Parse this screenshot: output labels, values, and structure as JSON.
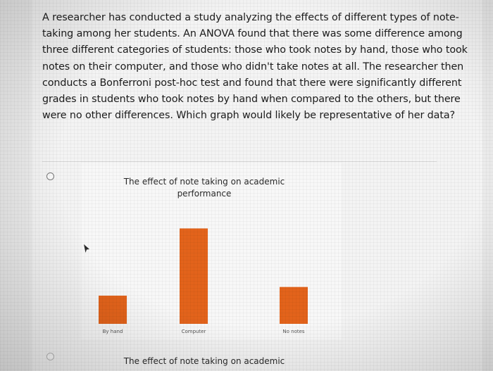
{
  "question": {
    "text": "A researcher has conducted a study analyzing the effects of different types of note-taking among her students. An ANOVA found that there was some difference among three different categories of students: those who took notes by hand, those who took notes on their computer, and those who didn't take notes at all. The researcher then conducts a Bonferroni post-hoc test and found that there were significantly different grades in students who took notes by hand when compared to the others, but there were no other differences. Which graph would likely be representative of her data?"
  },
  "options": [
    {
      "chart_title": "The effect of note taking on academic performance"
    },
    {
      "chart_title": "The effect of note taking on academic"
    }
  ],
  "colors": {
    "bar": "#e3631b",
    "text": "#1b1b1b"
  },
  "chart_data": {
    "type": "bar",
    "title": "The effect of note taking on academic performance",
    "categories": [
      "By hand",
      "Computer",
      "No notes"
    ],
    "values": [
      1.3,
      4.4,
      1.7
    ],
    "xlabel": "",
    "ylabel": "",
    "ylim": [
      0,
      5
    ],
    "grid": false
  }
}
